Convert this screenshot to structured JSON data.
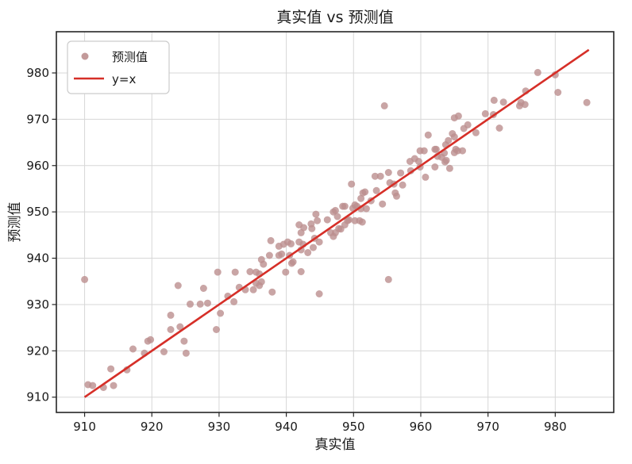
{
  "title": "真实值 vs 预测值",
  "colors": {
    "scatter": "#bc8f8f",
    "line": "#d62f28",
    "grid": "#d7d7d7",
    "frame": "#262626",
    "text": "#1a1a1a",
    "background": "#ffffff",
    "legend_border": "#cccccc"
  },
  "legend": {
    "position": "upper left",
    "items": [
      {
        "label": "预测值",
        "type": "marker"
      },
      {
        "label": "y=x",
        "type": "line"
      }
    ]
  },
  "chart_data": {
    "type": "scatter",
    "title": "真实值 vs 预测值",
    "xlabel": "真实值",
    "ylabel": "预测值",
    "xlim": [
      905.8,
      988.7
    ],
    "ylim": [
      906.7,
      988.9
    ],
    "x_ticks": [
      910,
      920,
      930,
      940,
      950,
      960,
      970,
      980
    ],
    "y_ticks": [
      910,
      920,
      930,
      940,
      950,
      960,
      970,
      980
    ],
    "grid": true,
    "legend_position": "upper left",
    "series": [
      {
        "name": "预测值",
        "type": "scatter",
        "color": "#bc8f8f",
        "marker_opacity": 0.8,
        "points": [
          [
            910.0,
            935.4
          ],
          [
            910.5,
            912.7
          ],
          [
            911.2,
            912.5
          ],
          [
            912.8,
            912.1
          ],
          [
            913.9,
            916.1
          ],
          [
            914.3,
            912.5
          ],
          [
            916.3,
            915.9
          ],
          [
            917.2,
            920.4
          ],
          [
            918.9,
            919.5
          ],
          [
            919.4,
            922.1
          ],
          [
            919.8,
            922.4
          ],
          [
            921.8,
            919.8
          ],
          [
            922.8,
            924.6
          ],
          [
            922.8,
            927.7
          ],
          [
            923.9,
            934.1
          ],
          [
            924.2,
            925.2
          ],
          [
            924.8,
            922.1
          ],
          [
            925.1,
            919.5
          ],
          [
            925.7,
            930.1
          ],
          [
            927.2,
            930.1
          ],
          [
            927.7,
            933.5
          ],
          [
            928.3,
            930.3
          ],
          [
            929.6,
            924.6
          ],
          [
            929.8,
            937.0
          ],
          [
            930.2,
            928.1
          ],
          [
            931.3,
            931.8
          ],
          [
            932.2,
            930.6
          ],
          [
            932.4,
            937.0
          ],
          [
            933.0,
            933.7
          ],
          [
            933.9,
            933.2
          ],
          [
            934.6,
            937.1
          ],
          [
            935.1,
            933.2
          ],
          [
            935.5,
            937.0
          ],
          [
            935.5,
            934.6
          ],
          [
            936.0,
            936.6
          ],
          [
            936.0,
            934.1
          ],
          [
            936.3,
            934.9
          ],
          [
            936.3,
            939.7
          ],
          [
            936.6,
            938.7
          ],
          [
            937.5,
            940.6
          ],
          [
            937.7,
            943.8
          ],
          [
            937.9,
            932.7
          ],
          [
            938.9,
            942.6
          ],
          [
            938.9,
            940.6
          ],
          [
            939.3,
            940.9
          ],
          [
            939.6,
            943.0
          ],
          [
            939.9,
            937.0
          ],
          [
            940.2,
            943.5
          ],
          [
            940.5,
            940.6
          ],
          [
            940.7,
            943.1
          ],
          [
            940.8,
            938.9
          ],
          [
            941.0,
            939.2
          ],
          [
            941.9,
            943.5
          ],
          [
            941.9,
            947.2
          ],
          [
            942.2,
            941.8
          ],
          [
            942.2,
            945.5
          ],
          [
            942.2,
            937.1
          ],
          [
            942.5,
            943.0
          ],
          [
            942.6,
            946.6
          ],
          [
            943.2,
            941.2
          ],
          [
            943.7,
            947.4
          ],
          [
            943.8,
            946.4
          ],
          [
            944.0,
            942.3
          ],
          [
            944.2,
            944.3
          ],
          [
            944.4,
            949.5
          ],
          [
            944.6,
            948.1
          ],
          [
            944.9,
            943.5
          ],
          [
            944.9,
            932.3
          ],
          [
            946.1,
            948.3
          ],
          [
            946.6,
            945.5
          ],
          [
            947.0,
            944.7
          ],
          [
            947.0,
            950.0
          ],
          [
            947.3,
            950.3
          ],
          [
            947.3,
            945.5
          ],
          [
            947.6,
            949.0
          ],
          [
            947.8,
            946.4
          ],
          [
            948.1,
            946.3
          ],
          [
            948.4,
            951.2
          ],
          [
            948.7,
            947.2
          ],
          [
            948.7,
            951.2
          ],
          [
            949.1,
            948.1
          ],
          [
            949.3,
            948.3
          ],
          [
            949.7,
            956.0
          ],
          [
            949.9,
            950.8
          ],
          [
            950.2,
            951.5
          ],
          [
            950.2,
            948.1
          ],
          [
            950.5,
            951.2
          ],
          [
            950.9,
            948.1
          ],
          [
            951.1,
            952.9
          ],
          [
            951.1,
            950.7
          ],
          [
            951.3,
            947.8
          ],
          [
            951.4,
            954.1
          ],
          [
            951.7,
            954.3
          ],
          [
            951.9,
            950.7
          ],
          [
            952.6,
            952.4
          ],
          [
            953.2,
            957.7
          ],
          [
            953.4,
            954.6
          ],
          [
            954.0,
            957.7
          ],
          [
            954.3,
            951.7
          ],
          [
            954.6,
            972.9
          ],
          [
            955.2,
            935.4
          ],
          [
            955.2,
            958.5
          ],
          [
            955.4,
            956.3
          ],
          [
            956.0,
            956.0
          ],
          [
            956.2,
            954.1
          ],
          [
            956.4,
            953.4
          ],
          [
            957.0,
            958.4
          ],
          [
            957.3,
            955.8
          ],
          [
            958.4,
            960.9
          ],
          [
            958.5,
            958.9
          ],
          [
            959.1,
            961.5
          ],
          [
            959.7,
            960.9
          ],
          [
            959.9,
            963.2
          ],
          [
            959.9,
            959.7
          ],
          [
            960.5,
            963.2
          ],
          [
            960.7,
            957.5
          ],
          [
            961.1,
            966.6
          ],
          [
            962.1,
            959.7
          ],
          [
            962.1,
            963.5
          ],
          [
            962.3,
            963.5
          ],
          [
            962.5,
            962.0
          ],
          [
            963.1,
            961.8
          ],
          [
            963.5,
            962.7
          ],
          [
            963.6,
            960.8
          ],
          [
            963.7,
            964.5
          ],
          [
            963.8,
            961.1
          ],
          [
            964.1,
            965.4
          ],
          [
            964.3,
            959.4
          ],
          [
            964.7,
            966.9
          ],
          [
            965.0,
            970.3
          ],
          [
            965.0,
            966.2
          ],
          [
            965.0,
            962.8
          ],
          [
            965.2,
            963.5
          ],
          [
            965.5,
            963.2
          ],
          [
            965.6,
            970.7
          ],
          [
            966.2,
            963.2
          ],
          [
            966.4,
            968.0
          ],
          [
            967.0,
            968.8
          ],
          [
            968.2,
            967.1
          ],
          [
            969.6,
            971.2
          ],
          [
            970.8,
            971.0
          ],
          [
            970.9,
            974.1
          ],
          [
            971.7,
            968.1
          ],
          [
            972.3,
            973.7
          ],
          [
            974.7,
            972.9
          ],
          [
            974.9,
            973.6
          ],
          [
            975.5,
            973.2
          ],
          [
            975.6,
            976.1
          ],
          [
            977.4,
            980.1
          ],
          [
            980.0,
            979.6
          ],
          [
            980.4,
            975.8
          ],
          [
            984.7,
            973.6
          ]
        ]
      },
      {
        "name": "y=x",
        "type": "line",
        "color": "#d62f28",
        "points": [
          [
            910,
            910
          ],
          [
            985,
            985
          ]
        ]
      }
    ]
  }
}
